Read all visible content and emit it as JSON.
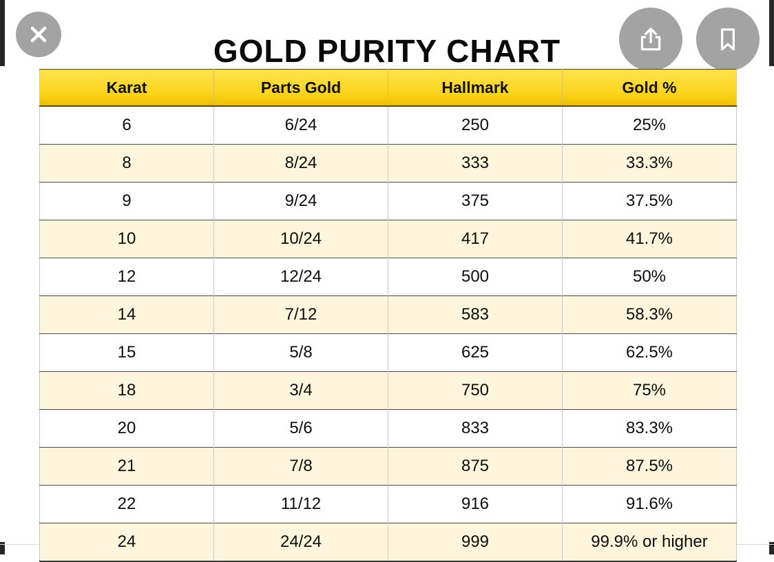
{
  "title": "GOLD PURITY CHART",
  "viewer": {
    "close_icon": "close-x",
    "share_icon": "share-arrow-up",
    "bookmark_icon": "bookmark"
  },
  "colors": {
    "header_yellow_top": "#ffe34d",
    "header_yellow_bottom": "#edbd00",
    "row_alt": "#fdf6dc",
    "row_white": "#ffffff",
    "border_dark": "#4a4a4a",
    "border_light": "#c9c9c9",
    "icon_circle_gray": "#a3a3a3",
    "text": "#0d0d0d"
  },
  "chart_data": {
    "type": "table",
    "title": "GOLD PURITY CHART",
    "columns": [
      "Karat",
      "Parts Gold",
      "Hallmark",
      "Gold %"
    ],
    "rows": [
      [
        "6",
        "6/24",
        "250",
        "25%"
      ],
      [
        "8",
        "8/24",
        "333",
        "33.3%"
      ],
      [
        "9",
        "9/24",
        "375",
        "37.5%"
      ],
      [
        "10",
        "10/24",
        "417",
        "41.7%"
      ],
      [
        "12",
        "12/24",
        "500",
        "50%"
      ],
      [
        "14",
        "7/12",
        "583",
        "58.3%"
      ],
      [
        "15",
        "5/8",
        "625",
        "62.5%"
      ],
      [
        "18",
        "3/4",
        "750",
        "75%"
      ],
      [
        "20",
        "5/6",
        "833",
        "83.3%"
      ],
      [
        "21",
        "7/8",
        "875",
        "87.5%"
      ],
      [
        "22",
        "11/12",
        "916",
        "91.6%"
      ],
      [
        "24",
        "24/24",
        "999",
        "99.9% or higher"
      ]
    ]
  }
}
